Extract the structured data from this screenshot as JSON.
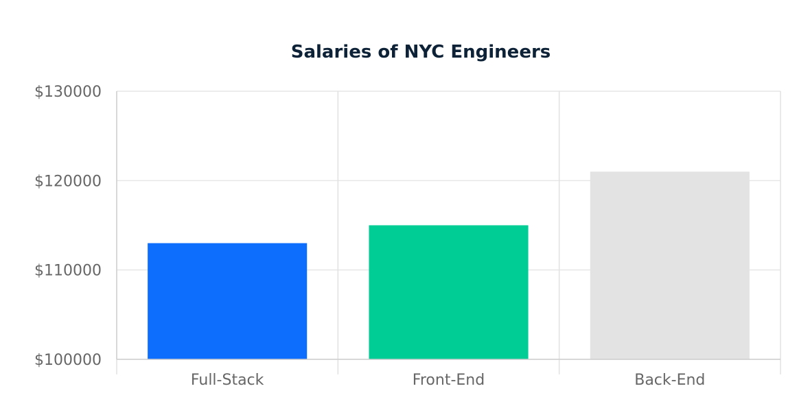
{
  "chart_data": {
    "type": "bar",
    "title": "Salaries of NYC Engineers",
    "xlabel": "",
    "ylabel": "",
    "categories": [
      "Full-Stack",
      "Front-End",
      "Back-End"
    ],
    "values": [
      113000,
      115000,
      121000
    ],
    "colors": [
      "#0d6efd",
      "#00cc96",
      "#e3e3e3"
    ],
    "ylim": [
      100000,
      130000
    ],
    "yticks": [
      100000,
      110000,
      120000,
      130000
    ],
    "ytick_labels": [
      "$100000",
      "$110000",
      "$120000",
      "$130000"
    ],
    "grid": true,
    "legend": "none"
  }
}
